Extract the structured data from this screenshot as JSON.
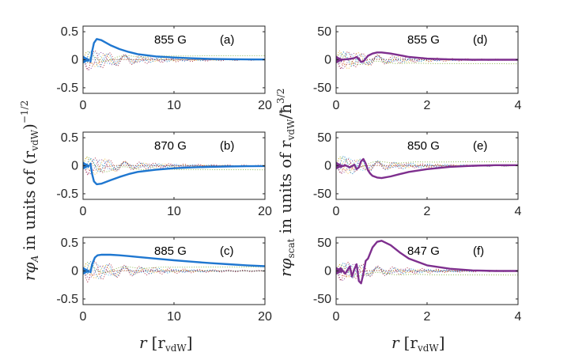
{
  "chart_data": [
    {
      "id": "a",
      "type": "line",
      "panel_label": "(a)",
      "field_label": "855 G",
      "xlim": [
        0,
        20
      ],
      "ylim": [
        -0.6,
        0.6
      ],
      "xticks": [
        "0",
        "10",
        "20"
      ],
      "yticks": [
        "0.5",
        "0",
        "-0.5"
      ],
      "xtick_values": [
        0,
        10,
        20
      ],
      "ytick_values": [
        0.5,
        0,
        -0.5
      ],
      "series": [
        {
          "name": "main",
          "color": "#1f77d0",
          "style": "solid",
          "x": [
            0.8,
            1.0,
            1.2,
            1.5,
            2,
            3,
            4,
            5,
            6,
            8,
            10,
            12,
            14,
            16,
            18,
            20
          ],
          "y": [
            -0.05,
            0.15,
            0.3,
            0.37,
            0.35,
            0.26,
            0.19,
            0.14,
            0.1,
            0.06,
            0.04,
            0.025,
            0.015,
            0.01,
            0.006,
            0.004
          ]
        }
      ]
    },
    {
      "id": "b",
      "type": "line",
      "panel_label": "(b)",
      "field_label": "870 G",
      "xlim": [
        0,
        20
      ],
      "ylim": [
        -0.6,
        0.6
      ],
      "xticks": [
        "0",
        "10",
        "20"
      ],
      "yticks": [
        "0.5",
        "0",
        "-0.5"
      ],
      "xtick_values": [
        0,
        10,
        20
      ],
      "ytick_values": [
        0.5,
        0,
        -0.5
      ],
      "series": [
        {
          "name": "main",
          "color": "#1f77d0",
          "style": "solid",
          "x": [
            0.8,
            1.0,
            1.2,
            1.5,
            2,
            3,
            4,
            5,
            6,
            8,
            10,
            12,
            14,
            16,
            18,
            20
          ],
          "y": [
            0.05,
            -0.15,
            -0.28,
            -0.33,
            -0.32,
            -0.26,
            -0.2,
            -0.15,
            -0.11,
            -0.07,
            -0.045,
            -0.03,
            -0.02,
            -0.013,
            -0.008,
            -0.005
          ]
        }
      ]
    },
    {
      "id": "c",
      "type": "line",
      "panel_label": "(c)",
      "field_label": "885 G",
      "xlim": [
        0,
        20
      ],
      "ylim": [
        -0.6,
        0.6
      ],
      "xticks": [
        "0",
        "10",
        "20"
      ],
      "yticks": [
        "0.5",
        "0",
        "-0.5"
      ],
      "xtick_values": [
        0,
        10,
        20
      ],
      "ytick_values": [
        0.5,
        0,
        -0.5
      ],
      "series": [
        {
          "name": "main",
          "color": "#1f77d0",
          "style": "solid",
          "x": [
            0.8,
            1.0,
            1.3,
            1.6,
            2,
            3,
            4,
            5,
            6,
            8,
            10,
            12,
            14,
            16,
            18,
            20
          ],
          "y": [
            -0.04,
            0.12,
            0.24,
            0.28,
            0.29,
            0.29,
            0.28,
            0.265,
            0.25,
            0.22,
            0.19,
            0.165,
            0.14,
            0.12,
            0.1,
            0.085
          ]
        }
      ]
    },
    {
      "id": "d",
      "type": "line",
      "panel_label": "(d)",
      "field_label": "855 G",
      "xlim": [
        0,
        4
      ],
      "ylim": [
        -60,
        60
      ],
      "xticks": [
        "0",
        "2",
        "4"
      ],
      "yticks": [
        "50",
        "0",
        "-50"
      ],
      "xtick_values": [
        0,
        2,
        4
      ],
      "ytick_values": [
        50,
        0,
        -50
      ],
      "series": [
        {
          "name": "main",
          "color": "#7e2f8e",
          "style": "solid",
          "x": [
            0,
            0.2,
            0.3,
            0.4,
            0.45,
            0.5,
            0.55,
            0.6,
            0.65,
            0.7,
            0.8,
            0.9,
            1.0,
            1.2,
            1.4,
            1.6,
            2.0,
            2.5,
            3.0,
            3.5,
            4.0
          ],
          "y": [
            0,
            0.5,
            1.5,
            3,
            5,
            1,
            -4,
            -3,
            2,
            7,
            11,
            13,
            13,
            11,
            8,
            5,
            2,
            0.5,
            0,
            0,
            0
          ]
        }
      ]
    },
    {
      "id": "e",
      "type": "line",
      "panel_label": "(e)",
      "field_label": "850 G",
      "xlim": [
        0,
        4
      ],
      "ylim": [
        -60,
        60
      ],
      "xticks": [
        "0",
        "2",
        "4"
      ],
      "yticks": [
        "50",
        "0",
        "-50"
      ],
      "xtick_values": [
        0,
        2,
        4
      ],
      "ytick_values": [
        50,
        0,
        -50
      ],
      "series": [
        {
          "name": "main",
          "color": "#7e2f8e",
          "style": "solid",
          "x": [
            0,
            0.1,
            0.2,
            0.3,
            0.4,
            0.45,
            0.5,
            0.55,
            0.6,
            0.65,
            0.7,
            0.75,
            0.8,
            0.9,
            1.0,
            1.2,
            1.4,
            1.6,
            2.0,
            2.5,
            3.0,
            3.5,
            4.0
          ],
          "y": [
            2,
            -2,
            1,
            -3,
            2,
            -6,
            -3,
            8,
            12,
            4,
            -8,
            -14,
            -18,
            -21,
            -22,
            -19,
            -15,
            -11,
            -6,
            -2,
            0,
            1,
            1
          ]
        }
      ]
    },
    {
      "id": "f",
      "type": "line",
      "panel_label": "(f)",
      "field_label": "847 G",
      "xlim": [
        0,
        4
      ],
      "ylim": [
        -60,
        60
      ],
      "xticks": [
        "0",
        "2",
        "4"
      ],
      "yticks": [
        "50",
        "0",
        "-50"
      ],
      "xtick_values": [
        0,
        2,
        4
      ],
      "ytick_values": [
        50,
        0,
        -50
      ],
      "series": [
        {
          "name": "main",
          "color": "#7e2f8e",
          "style": "solid",
          "x": [
            0,
            0.1,
            0.2,
            0.3,
            0.35,
            0.4,
            0.45,
            0.5,
            0.55,
            0.6,
            0.65,
            0.7,
            0.8,
            0.9,
            1.0,
            1.2,
            1.4,
            1.6,
            2.0,
            2.5,
            3.0,
            3.5,
            4.0
          ],
          "y": [
            0,
            5,
            -5,
            8,
            -10,
            3,
            12,
            -18,
            -22,
            -5,
            18,
            22,
            42,
            52,
            54,
            46,
            33,
            22,
            10,
            4,
            1,
            0,
            0
          ]
        }
      ]
    }
  ],
  "labels": {
    "xlabel_left": "r",
    "xlabel_left_unit": "[r",
    "xlabel_left_sub": "vdW",
    "xlabel_left_close": "]",
    "xlabel_right": "r",
    "xlabel_right_unit": "[r",
    "xlabel_right_sub": "vdW",
    "xlabel_right_close": "]",
    "ylabel_left": "rφ",
    "ylabel_left_sub": "A",
    "ylabel_left_rest": " in units of (r",
    "ylabel_left_sub2": "vdW",
    "ylabel_left_tail": ")",
    "ylabel_left_exp": "−1/2",
    "ylabel_right": "rφ",
    "ylabel_right_sub": "scat",
    "ylabel_right_rest": " in units of r",
    "ylabel_right_sub2": "vdW",
    "ylabel_right_tail": "/ħ",
    "ylabel_right_exp": "3/2"
  },
  "colors": {
    "dotted_palette": [
      "#d95319",
      "#77ac30",
      "#4dbeee",
      "#7e2f8e",
      "#edb120",
      "#0072bd",
      "#a2142f"
    ]
  }
}
